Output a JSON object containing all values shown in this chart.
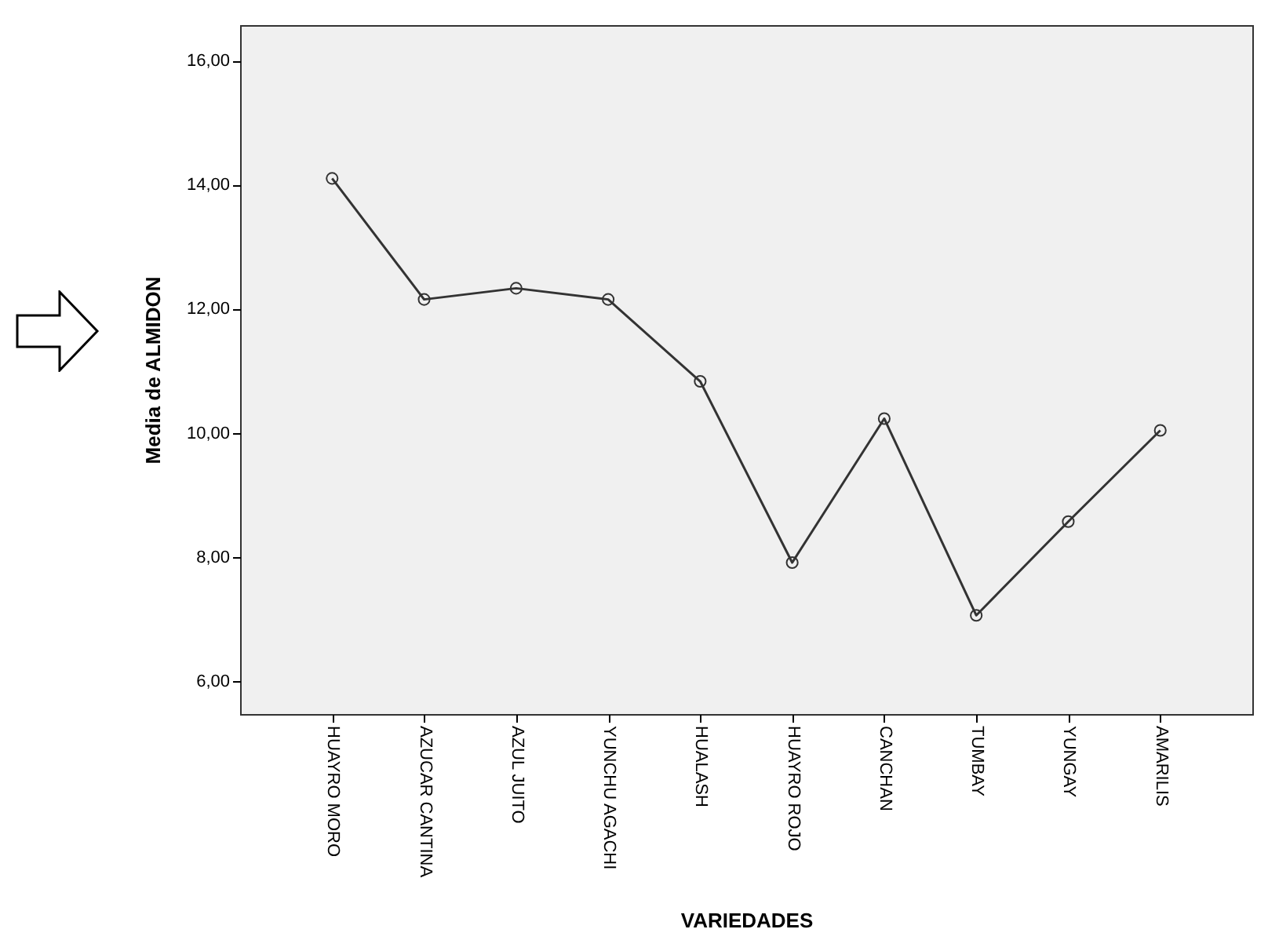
{
  "chart_data": {
    "type": "line",
    "xlabel": "VARIEDADES",
    "ylabel": "Media de ALMIDON",
    "categories": [
      "HUAYRO MORO",
      "AZUCAR CANTINA",
      "AZUL JUITO",
      "YUNCHU AGACHI",
      "HUALASH",
      "HUAYRO ROJO",
      "CANCHAN",
      "TUMBAY",
      "YUNGAY",
      "AMARILIS"
    ],
    "series": [
      {
        "color": "#333333",
        "values": [
          14.1,
          12.15,
          12.33,
          12.15,
          10.83,
          7.91,
          10.23,
          7.06,
          8.57,
          10.04
        ]
      }
    ],
    "ylim": [
      5.47,
      16.57
    ],
    "yticks": [
      {
        "value": 6,
        "label": "6,00"
      },
      {
        "value": 8,
        "label": "8,00"
      },
      {
        "value": 10,
        "label": "10,00"
      },
      {
        "value": 12,
        "label": "12,00"
      },
      {
        "value": 14,
        "label": "14,00"
      },
      {
        "value": 16,
        "label": "16,00"
      }
    ],
    "marker": "circle"
  }
}
